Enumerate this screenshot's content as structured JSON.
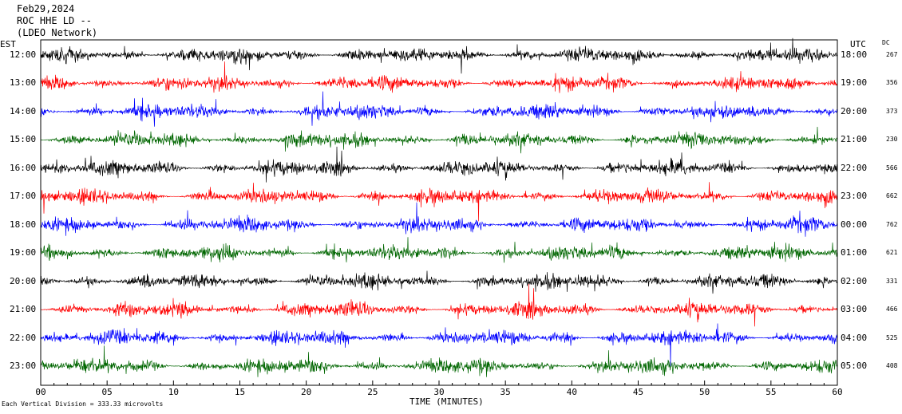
{
  "header": {
    "date": "Feb29,2024",
    "station": "ROC HHE LD --",
    "network": "(LDEO Network)"
  },
  "labels": {
    "left_tz": "EST",
    "right_tz": "UTC",
    "dc_header": "DC"
  },
  "footer": {
    "scale_note": "Each Vertical Division = 333.33 microvolts"
  },
  "colors": {
    "trace_cycle": [
      "#000000",
      "#ff0000",
      "#0000ff",
      "#006600"
    ]
  },
  "chart_data": {
    "type": "line",
    "title": "",
    "xlabel": "TIME (MINUTES)",
    "ylabel": "",
    "xlim": [
      0,
      60
    ],
    "x_ticks": [
      "00",
      "05",
      "10",
      "15",
      "20",
      "25",
      "30",
      "35",
      "40",
      "45",
      "50",
      "55",
      "60"
    ],
    "rows": [
      {
        "est": "12:00",
        "utc": "18:00",
        "dc": "267"
      },
      {
        "est": "13:00",
        "utc": "19:00",
        "dc": "356"
      },
      {
        "est": "14:00",
        "utc": "20:00",
        "dc": "373"
      },
      {
        "est": "15:00",
        "utc": "21:00",
        "dc": "230"
      },
      {
        "est": "16:00",
        "utc": "22:00",
        "dc": "566"
      },
      {
        "est": "17:00",
        "utc": "23:00",
        "dc": "662"
      },
      {
        "est": "18:00",
        "utc": "00:00",
        "dc": "762"
      },
      {
        "est": "19:00",
        "utc": "01:00",
        "dc": "621"
      },
      {
        "est": "20:00",
        "utc": "02:00",
        "dc": "331"
      },
      {
        "est": "21:00",
        "utc": "03:00",
        "dc": "466"
      },
      {
        "est": "22:00",
        "utc": "04:00",
        "dc": "525"
      },
      {
        "est": "23:00",
        "utc": "05:00",
        "dc": "408"
      }
    ],
    "grid": false,
    "legend": "none"
  }
}
